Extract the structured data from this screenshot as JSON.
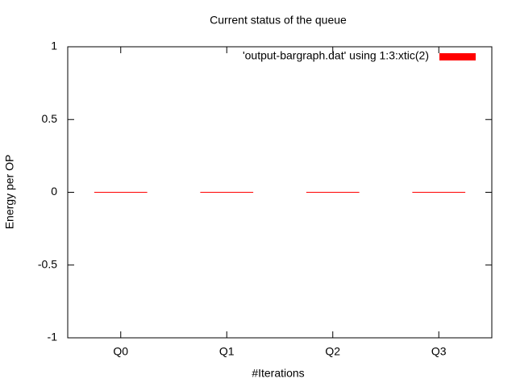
{
  "chart_data": {
    "type": "bar",
    "title": "Current status of the queue",
    "xlabel": "#Iterations",
    "ylabel": "Energy per OP",
    "categories": [
      "Q0",
      "Q1",
      "Q2",
      "Q3"
    ],
    "series": [
      {
        "name": "'output-bargraph.dat' using 1:3:xtic(2)",
        "values": [
          0,
          0,
          0,
          0
        ],
        "color": "#ff0000"
      }
    ],
    "ylim": [
      -1,
      1
    ],
    "yticks": [
      -1,
      -0.5,
      0,
      0.5,
      1
    ],
    "ytick_labels": [
      "-1",
      "-0.5",
      "0",
      "0.5",
      "1"
    ],
    "grid": false,
    "legend_position": "top-right"
  }
}
